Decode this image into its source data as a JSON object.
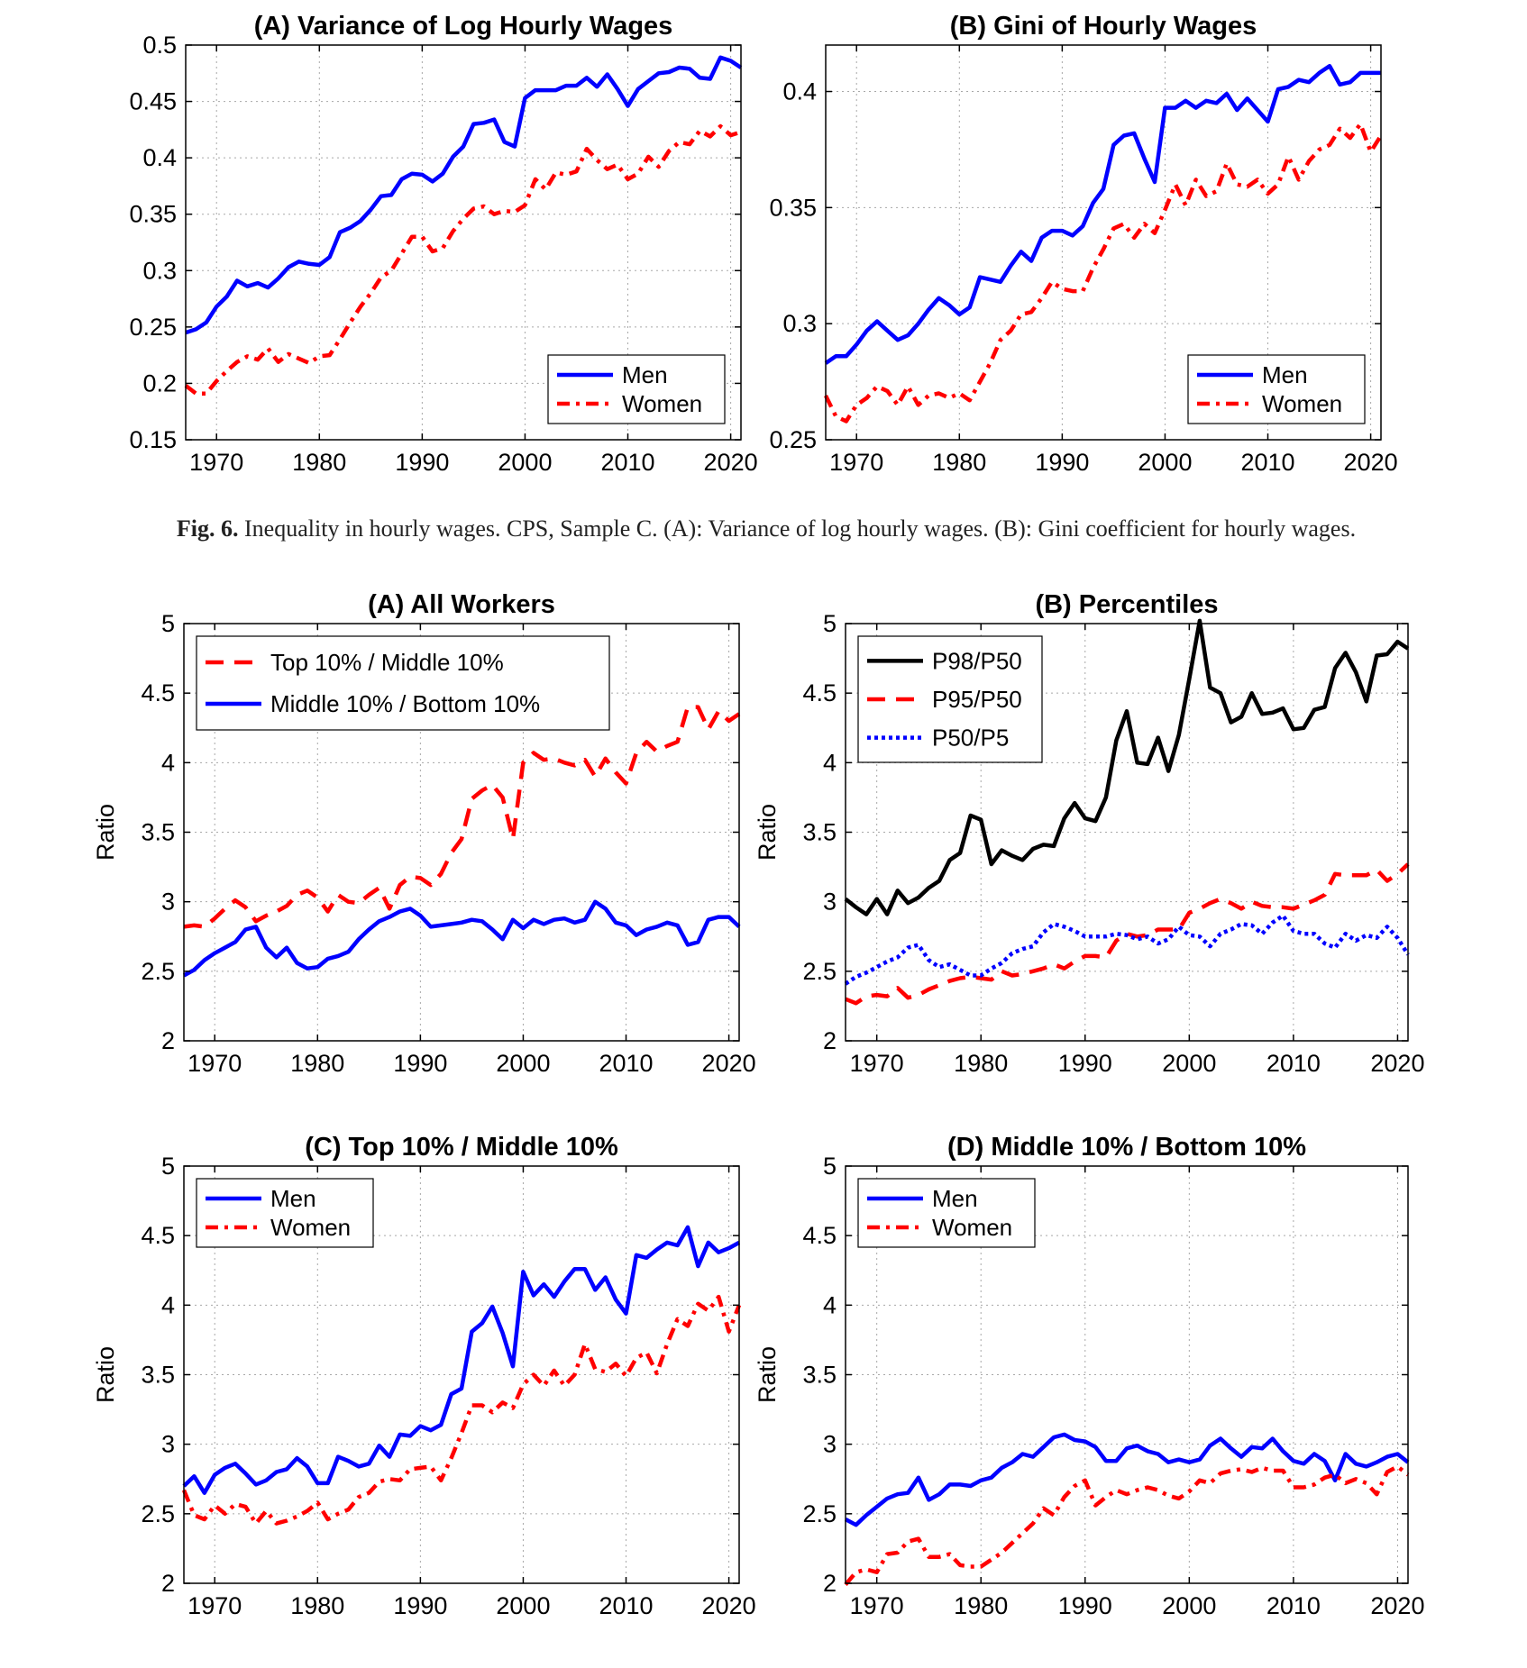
{
  "caption": {
    "label": "Fig. 6.",
    "text": "Inequality in hourly wages. CPS, Sample C. (A): Variance of log hourly wages. (B): Gini coefficient for hourly wages."
  },
  "chart_data": [
    {
      "type": "line",
      "title": "(A) Variance of Log Hourly Wages",
      "ylabel": "",
      "xlim": [
        1967,
        2021
      ],
      "ylim": [
        0.15,
        0.5
      ],
      "xticks": [
        1970,
        1980,
        1990,
        2000,
        2010,
        2020
      ],
      "yticks": [
        0.15,
        0.2,
        0.25,
        0.3,
        0.35,
        0.4,
        0.45,
        0.5
      ],
      "ytick_labels": [
        "0.15",
        "0.2",
        "0.25",
        "0.3",
        "0.35",
        "0.4",
        "0.45",
        "0.5"
      ],
      "grid": true,
      "legend": "bottom-right",
      "series": [
        {
          "name": "Men",
          "color": "#0000ff",
          "dash": "solid",
          "x0": 1967,
          "values": [
            0.245,
            0.248,
            0.254,
            0.268,
            0.277,
            0.291,
            0.286,
            0.289,
            0.285,
            0.293,
            0.303,
            0.308,
            0.306,
            0.305,
            0.312,
            0.334,
            0.338,
            0.344,
            0.354,
            0.366,
            0.367,
            0.381,
            0.386,
            0.385,
            0.379,
            0.386,
            0.401,
            0.41,
            0.43,
            0.431,
            0.434,
            0.414,
            0.41,
            0.453,
            0.46,
            0.46,
            0.46,
            0.464,
            0.464,
            0.471,
            0.463,
            0.474,
            0.461,
            0.446,
            0.461,
            0.468,
            0.475,
            0.476,
            0.48,
            0.479,
            0.471,
            0.47,
            0.489,
            0.486,
            0.48
          ]
        },
        {
          "name": "Women",
          "color": "#ff0000",
          "dash": "dashdot",
          "x0": 1967,
          "values": [
            0.198,
            0.191,
            0.191,
            0.202,
            0.211,
            0.219,
            0.224,
            0.221,
            0.231,
            0.219,
            0.226,
            0.222,
            0.218,
            0.224,
            0.225,
            0.239,
            0.254,
            0.268,
            0.28,
            0.294,
            0.3,
            0.315,
            0.33,
            0.33,
            0.317,
            0.32,
            0.335,
            0.346,
            0.355,
            0.357,
            0.35,
            0.353,
            0.352,
            0.358,
            0.381,
            0.372,
            0.387,
            0.385,
            0.388,
            0.408,
            0.398,
            0.39,
            0.394,
            0.381,
            0.386,
            0.401,
            0.392,
            0.406,
            0.414,
            0.412,
            0.424,
            0.419,
            0.428,
            0.42,
            0.423
          ]
        }
      ]
    },
    {
      "type": "line",
      "title": "(B) Gini of Hourly Wages",
      "ylabel": "",
      "xlim": [
        1967,
        2021
      ],
      "ylim": [
        0.25,
        0.42
      ],
      "xticks": [
        1970,
        1980,
        1990,
        2000,
        2010,
        2020
      ],
      "yticks": [
        0.25,
        0.3,
        0.35,
        0.4
      ],
      "ytick_labels": [
        "0.25",
        "0.3",
        "0.35",
        "0.4"
      ],
      "grid": true,
      "legend": "bottom-right",
      "series": [
        {
          "name": "Men",
          "color": "#0000ff",
          "dash": "solid",
          "x0": 1967,
          "values": [
            0.283,
            0.286,
            0.286,
            0.291,
            0.297,
            0.301,
            0.297,
            0.293,
            0.295,
            0.3,
            0.306,
            0.311,
            0.308,
            0.304,
            0.307,
            0.32,
            0.319,
            0.318,
            0.325,
            0.331,
            0.327,
            0.337,
            0.34,
            0.34,
            0.338,
            0.342,
            0.352,
            0.358,
            0.377,
            0.381,
            0.382,
            0.371,
            0.361,
            0.393,
            0.393,
            0.396,
            0.393,
            0.396,
            0.395,
            0.399,
            0.392,
            0.397,
            0.392,
            0.387,
            0.401,
            0.402,
            0.405,
            0.404,
            0.408,
            0.411,
            0.403,
            0.404,
            0.408,
            0.408,
            0.408
          ]
        },
        {
          "name": "Women",
          "color": "#ff0000",
          "dash": "dashdot",
          "x0": 1967,
          "values": [
            0.269,
            0.26,
            0.258,
            0.265,
            0.268,
            0.273,
            0.271,
            0.265,
            0.273,
            0.265,
            0.269,
            0.27,
            0.268,
            0.27,
            0.267,
            0.275,
            0.283,
            0.293,
            0.297,
            0.304,
            0.305,
            0.311,
            0.318,
            0.315,
            0.314,
            0.314,
            0.324,
            0.332,
            0.341,
            0.343,
            0.337,
            0.343,
            0.339,
            0.349,
            0.36,
            0.351,
            0.362,
            0.355,
            0.357,
            0.369,
            0.36,
            0.359,
            0.362,
            0.356,
            0.36,
            0.372,
            0.362,
            0.37,
            0.375,
            0.377,
            0.384,
            0.38,
            0.386,
            0.374,
            0.381
          ]
        }
      ]
    },
    {
      "type": "line",
      "title": "(A) All Workers",
      "ylabel": "Ratio",
      "xlim": [
        1967,
        2021
      ],
      "ylim": [
        2,
        5
      ],
      "xticks": [
        1970,
        1980,
        1990,
        2000,
        2010,
        2020
      ],
      "yticks": [
        2,
        2.5,
        3,
        3.5,
        4,
        4.5,
        5
      ],
      "ytick_labels": [
        "2",
        "2.5",
        "3",
        "3.5",
        "4",
        "4.5",
        "5"
      ],
      "grid": true,
      "legend": "top-left",
      "series": [
        {
          "name": "Top 10% / Middle 10%",
          "color": "#ff0000",
          "dash": "dashed",
          "x0": 1967,
          "values": [
            2.82,
            2.83,
            2.82,
            2.88,
            2.95,
            3.01,
            2.96,
            2.86,
            2.9,
            2.93,
            2.97,
            3.05,
            3.08,
            3.03,
            2.93,
            3.05,
            3.0,
            2.99,
            3.05,
            3.1,
            2.95,
            3.12,
            3.18,
            3.17,
            3.12,
            3.2,
            3.35,
            3.45,
            3.74,
            3.8,
            3.84,
            3.75,
            3.45,
            4.0,
            4.07,
            4.02,
            4.03,
            4.0,
            3.98,
            4.02,
            3.9,
            4.03,
            3.93,
            3.85,
            4.07,
            4.15,
            4.08,
            4.12,
            4.15,
            4.4,
            4.4,
            4.24,
            4.37,
            4.3,
            4.35
          ]
        },
        {
          "name": "Middle 10% / Bottom 10%",
          "color": "#0000ff",
          "dash": "solid",
          "x0": 1967,
          "values": [
            2.47,
            2.51,
            2.58,
            2.63,
            2.67,
            2.71,
            2.8,
            2.82,
            2.67,
            2.6,
            2.67,
            2.56,
            2.52,
            2.53,
            2.59,
            2.61,
            2.64,
            2.73,
            2.8,
            2.86,
            2.89,
            2.93,
            2.95,
            2.9,
            2.82,
            2.83,
            2.84,
            2.85,
            2.87,
            2.86,
            2.8,
            2.73,
            2.87,
            2.81,
            2.87,
            2.84,
            2.87,
            2.88,
            2.85,
            2.87,
            3.0,
            2.95,
            2.85,
            2.83,
            2.76,
            2.8,
            2.82,
            2.85,
            2.83,
            2.69,
            2.71,
            2.87,
            2.89,
            2.89,
            2.82
          ]
        }
      ]
    },
    {
      "type": "line",
      "title": "(B) Percentiles",
      "ylabel": "Ratio",
      "xlim": [
        1967,
        2021
      ],
      "ylim": [
        2,
        5
      ],
      "xticks": [
        1970,
        1980,
        1990,
        2000,
        2010,
        2020
      ],
      "yticks": [
        2,
        2.5,
        3,
        3.5,
        4,
        4.5,
        5
      ],
      "ytick_labels": [
        "2",
        "2.5",
        "3",
        "3.5",
        "4",
        "4.5",
        "5"
      ],
      "grid": true,
      "legend": "top-left",
      "series": [
        {
          "name": "P98/P50",
          "color": "#000000",
          "dash": "solid",
          "x0": 1967,
          "values": [
            3.02,
            2.96,
            2.91,
            3.02,
            2.91,
            3.08,
            2.99,
            3.03,
            3.1,
            3.15,
            3.3,
            3.35,
            3.62,
            3.59,
            3.27,
            3.37,
            3.33,
            3.3,
            3.38,
            3.41,
            3.4,
            3.6,
            3.71,
            3.6,
            3.58,
            3.75,
            4.16,
            4.37,
            4.0,
            3.99,
            4.18,
            3.94,
            4.2,
            4.6,
            5.02,
            4.54,
            4.5,
            4.29,
            4.33,
            4.5,
            4.35,
            4.36,
            4.39,
            4.24,
            4.25,
            4.38,
            4.4,
            4.68,
            4.79,
            4.65,
            4.44,
            4.77,
            4.78,
            4.87,
            4.82
          ]
        },
        {
          "name": "P95/P50",
          "color": "#ff0000",
          "dash": "dashed",
          "x0": 1967,
          "values": [
            2.3,
            2.27,
            2.32,
            2.33,
            2.32,
            2.38,
            2.31,
            2.33,
            2.37,
            2.4,
            2.43,
            2.45,
            2.46,
            2.45,
            2.44,
            2.5,
            2.47,
            2.48,
            2.5,
            2.52,
            2.55,
            2.52,
            2.57,
            2.61,
            2.61,
            2.6,
            2.72,
            2.77,
            2.75,
            2.76,
            2.8,
            2.8,
            2.8,
            2.92,
            2.95,
            2.99,
            3.02,
            2.99,
            2.95,
            3.0,
            2.97,
            2.96,
            2.96,
            2.95,
            2.98,
            3.01,
            3.05,
            3.2,
            3.19,
            3.19,
            3.19,
            3.23,
            3.15,
            3.2,
            3.27
          ]
        },
        {
          "name": "P50/P5",
          "color": "#0000ff",
          "dash": "dotted",
          "x0": 1967,
          "values": [
            2.41,
            2.46,
            2.49,
            2.53,
            2.57,
            2.6,
            2.67,
            2.69,
            2.58,
            2.53,
            2.55,
            2.51,
            2.47,
            2.47,
            2.52,
            2.56,
            2.63,
            2.66,
            2.68,
            2.78,
            2.84,
            2.82,
            2.79,
            2.75,
            2.75,
            2.75,
            2.77,
            2.76,
            2.73,
            2.75,
            2.7,
            2.73,
            2.82,
            2.76,
            2.75,
            2.68,
            2.77,
            2.8,
            2.84,
            2.83,
            2.77,
            2.85,
            2.9,
            2.79,
            2.77,
            2.77,
            2.7,
            2.67,
            2.77,
            2.72,
            2.76,
            2.74,
            2.82,
            2.74,
            2.62
          ]
        }
      ]
    },
    {
      "type": "line",
      "title": "(C) Top 10% / Middle 10%",
      "ylabel": "Ratio",
      "xlim": [
        1967,
        2021
      ],
      "ylim": [
        2,
        5
      ],
      "xticks": [
        1970,
        1980,
        1990,
        2000,
        2010,
        2020
      ],
      "yticks": [
        2,
        2.5,
        3,
        3.5,
        4,
        4.5,
        5
      ],
      "ytick_labels": [
        "2",
        "2.5",
        "3",
        "3.5",
        "4",
        "4.5",
        "5"
      ],
      "grid": true,
      "legend": "top-left",
      "series": [
        {
          "name": "Men",
          "color": "#0000ff",
          "dash": "solid",
          "x0": 1967,
          "values": [
            2.7,
            2.77,
            2.65,
            2.78,
            2.83,
            2.86,
            2.79,
            2.71,
            2.74,
            2.8,
            2.82,
            2.9,
            2.84,
            2.72,
            2.72,
            2.91,
            2.88,
            2.84,
            2.86,
            2.99,
            2.91,
            3.07,
            3.06,
            3.13,
            3.1,
            3.14,
            3.36,
            3.4,
            3.81,
            3.87,
            3.99,
            3.8,
            3.56,
            4.24,
            4.07,
            4.15,
            4.06,
            4.17,
            4.26,
            4.26,
            4.11,
            4.2,
            4.04,
            3.94,
            4.36,
            4.34,
            4.4,
            4.45,
            4.43,
            4.56,
            4.28,
            4.45,
            4.38,
            4.41,
            4.45
          ]
        },
        {
          "name": "Women",
          "color": "#ff0000",
          "dash": "dashdot",
          "x0": 1967,
          "values": [
            2.67,
            2.49,
            2.46,
            2.56,
            2.5,
            2.57,
            2.55,
            2.43,
            2.52,
            2.43,
            2.45,
            2.48,
            2.52,
            2.58,
            2.46,
            2.5,
            2.53,
            2.62,
            2.65,
            2.73,
            2.75,
            2.74,
            2.82,
            2.83,
            2.84,
            2.74,
            2.9,
            3.08,
            3.28,
            3.28,
            3.23,
            3.3,
            3.26,
            3.43,
            3.5,
            3.42,
            3.53,
            3.42,
            3.5,
            3.72,
            3.54,
            3.52,
            3.58,
            3.49,
            3.62,
            3.66,
            3.51,
            3.72,
            3.9,
            3.85,
            4.01,
            3.96,
            4.06,
            3.81,
            4.0
          ]
        }
      ]
    },
    {
      "type": "line",
      "title": "(D) Middle 10% / Bottom 10%",
      "ylabel": "Ratio",
      "xlim": [
        1967,
        2021
      ],
      "ylim": [
        2,
        5
      ],
      "xticks": [
        1970,
        1980,
        1990,
        2000,
        2010,
        2020
      ],
      "yticks": [
        2,
        2.5,
        3,
        3.5,
        4,
        4.5,
        5
      ],
      "ytick_labels": [
        "2",
        "2.5",
        "3",
        "3.5",
        "4",
        "4.5",
        "5"
      ],
      "grid": true,
      "legend": "top-left",
      "series": [
        {
          "name": "Men",
          "color": "#0000ff",
          "dash": "solid",
          "x0": 1967,
          "values": [
            2.46,
            2.42,
            2.49,
            2.55,
            2.61,
            2.64,
            2.65,
            2.76,
            2.6,
            2.64,
            2.71,
            2.71,
            2.7,
            2.74,
            2.76,
            2.83,
            2.87,
            2.93,
            2.91,
            2.98,
            3.05,
            3.07,
            3.03,
            3.02,
            2.98,
            2.88,
            2.88,
            2.97,
            2.99,
            2.95,
            2.93,
            2.87,
            2.89,
            2.87,
            2.89,
            2.99,
            3.04,
            2.97,
            2.91,
            2.98,
            2.97,
            3.04,
            2.95,
            2.88,
            2.86,
            2.93,
            2.88,
            2.74,
            2.93,
            2.86,
            2.84,
            2.87,
            2.91,
            2.93,
            2.87
          ]
        },
        {
          "name": "Women",
          "color": "#ff0000",
          "dash": "dashdot",
          "x0": 1967,
          "values": [
            1.99,
            2.08,
            2.1,
            2.08,
            2.21,
            2.22,
            2.3,
            2.32,
            2.19,
            2.19,
            2.21,
            2.13,
            2.12,
            2.12,
            2.17,
            2.22,
            2.29,
            2.36,
            2.43,
            2.54,
            2.49,
            2.62,
            2.7,
            2.74,
            2.56,
            2.62,
            2.67,
            2.64,
            2.67,
            2.69,
            2.67,
            2.63,
            2.61,
            2.66,
            2.74,
            2.72,
            2.79,
            2.81,
            2.82,
            2.8,
            2.83,
            2.81,
            2.81,
            2.69,
            2.69,
            2.71,
            2.76,
            2.78,
            2.72,
            2.75,
            2.72,
            2.64,
            2.8,
            2.84,
            2.78
          ]
        }
      ]
    }
  ]
}
